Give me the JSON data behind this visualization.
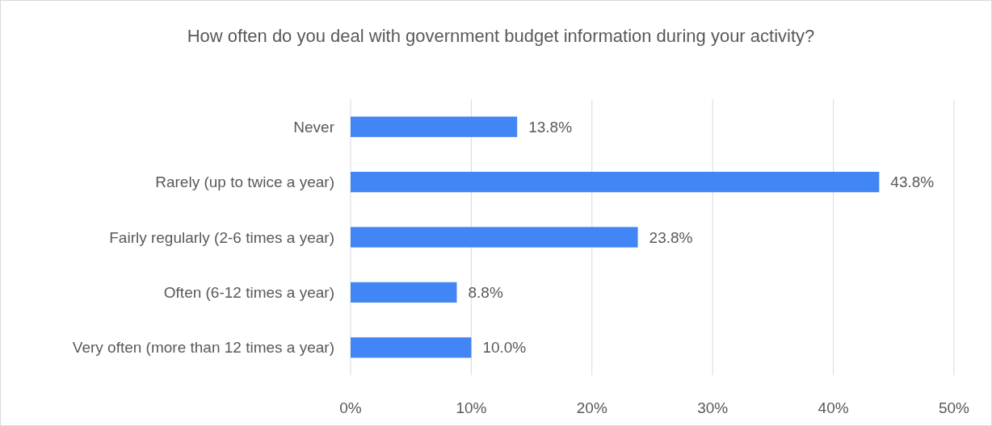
{
  "chart_data": {
    "type": "bar",
    "orientation": "horizontal",
    "title": "How often do you deal with government budget information during your activity?",
    "categories": [
      "Never",
      "Rarely (up to twice a year)",
      "Fairly regularly (2-6 times a year)",
      "Often (6-12 times a year)",
      "Very often (more than 12 times a year)"
    ],
    "values": [
      13.8,
      43.8,
      23.8,
      8.8,
      10.0
    ],
    "value_labels": [
      "13.8%",
      "43.8%",
      "23.8%",
      "8.8%",
      "10.0%"
    ],
    "color": "#4285f4",
    "xlim": [
      0,
      50
    ],
    "xticks": [
      {
        "value": 0,
        "label": "0%"
      },
      {
        "value": 10,
        "label": "10%"
      },
      {
        "value": 20,
        "label": "20%"
      },
      {
        "value": 30,
        "label": "30%"
      },
      {
        "value": 40,
        "label": "40%"
      },
      {
        "value": 50,
        "label": "50%"
      }
    ],
    "grid": "x"
  }
}
